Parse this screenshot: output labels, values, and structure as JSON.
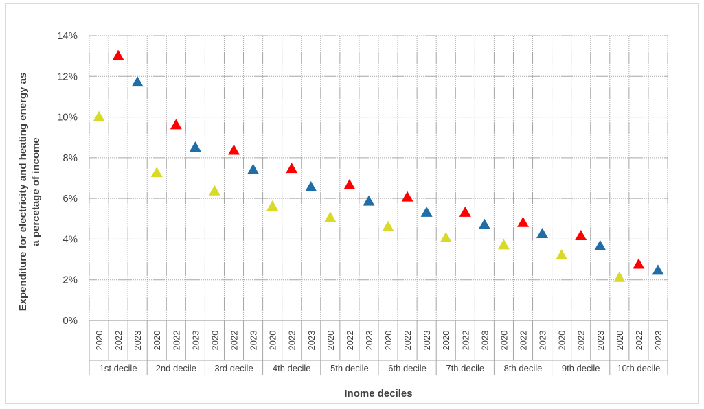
{
  "chart_data": {
    "type": "scatter",
    "marker": "triangle",
    "ylabel_lines": [
      "Expenditure for electricity and heating energy as",
      "a percetage of income"
    ],
    "xlabel": "Inome deciles",
    "ylim": [
      0,
      14
    ],
    "y_ticks": [
      "0%",
      "2%",
      "4%",
      "6%",
      "8%",
      "10%",
      "12%",
      "14%"
    ],
    "grid": true,
    "groups": [
      "1st decile",
      "2nd decile",
      "3rd decile",
      "4th decile",
      "5th decile",
      "6th decile",
      "7th decile",
      "8th decile",
      "9th decile",
      "10th decile"
    ],
    "years": [
      "2020",
      "2022",
      "2023"
    ],
    "year_colors": [
      "#d9d928",
      "#ff0000",
      "#1f6ea8"
    ],
    "values": [
      [
        10.0,
        13.0,
        11.7
      ],
      [
        7.25,
        9.6,
        8.5
      ],
      [
        6.35,
        8.35,
        7.4
      ],
      [
        5.6,
        7.45,
        6.55
      ],
      [
        5.05,
        6.65,
        5.85
      ],
      [
        4.6,
        6.05,
        5.3
      ],
      [
        4.05,
        5.3,
        4.7
      ],
      [
        3.7,
        4.8,
        4.25
      ],
      [
        3.2,
        4.15,
        3.65
      ],
      [
        2.1,
        2.75,
        2.45
      ]
    ]
  }
}
